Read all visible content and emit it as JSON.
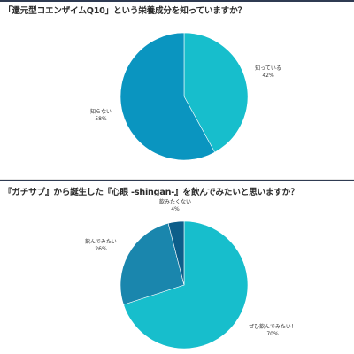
{
  "chart_data": [
    {
      "type": "pie",
      "title": "「還元型コエンザイムQ10」という栄養成分を知っていますか？",
      "categories": [
        "知っている",
        "知らない"
      ],
      "values": [
        42,
        58
      ],
      "value_labels": [
        "42%",
        "58%"
      ],
      "colors": [
        "#17becc",
        "#0a95c0"
      ]
    },
    {
      "type": "pie",
      "title": "『ガチサプ』から誕生した『心眼 -shingan-』を飲んでみたいと思いますか？",
      "categories": [
        "ぜひ飲んでみたい！",
        "飲んでみたい",
        "飲みたくない"
      ],
      "values": [
        70,
        26,
        4
      ],
      "value_labels": [
        "70%",
        "26%",
        "4%"
      ],
      "colors": [
        "#17becc",
        "#1a86ad",
        "#0c5e8a"
      ]
    }
  ]
}
